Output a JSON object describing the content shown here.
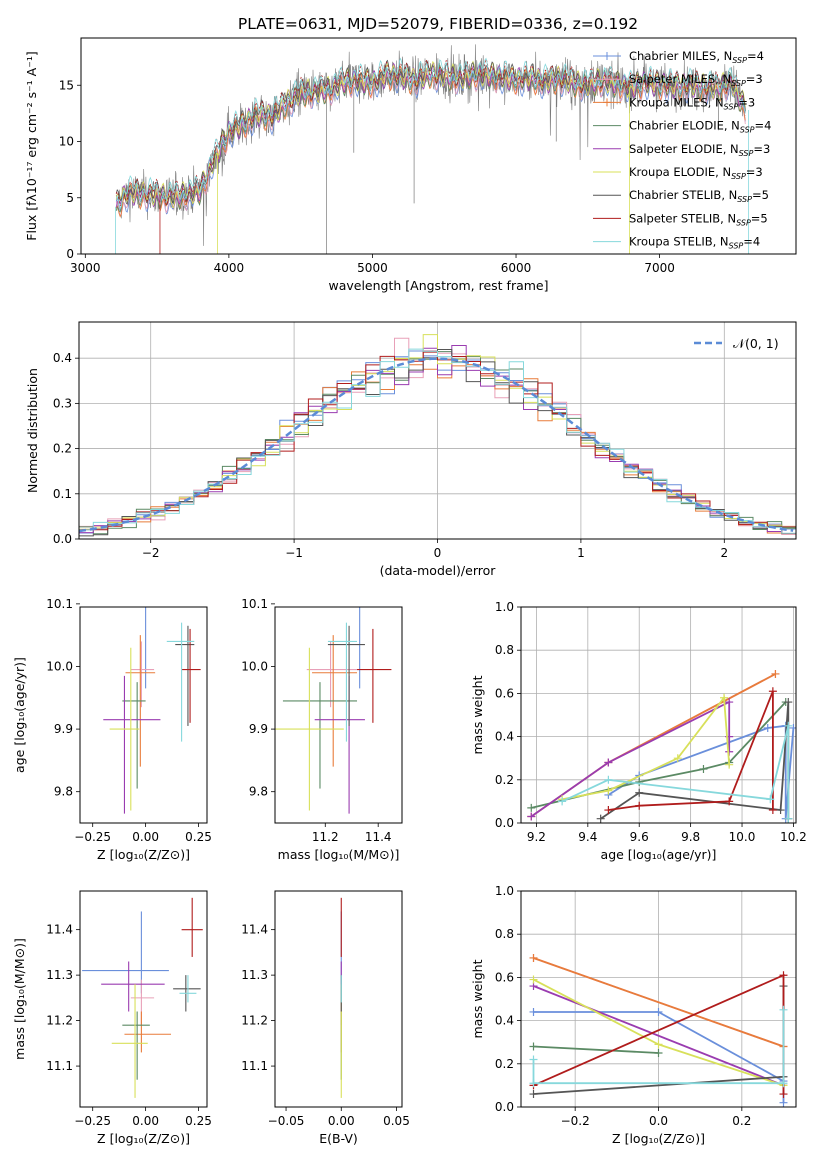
{
  "page_title": "PLATE=0631, MJD=52079, FIBERID=0336, z=0.192",
  "colors": [
    "#6a8fdb",
    "#e8a0b8",
    "#e87c3a",
    "#5b8a64",
    "#9a3cb0",
    "#d8e05a",
    "#555555",
    "#b01c1c",
    "#86d8dc"
  ],
  "chart_data": [
    {
      "id": "spectrum",
      "type": "line",
      "xlabel": "wavelength [Angstrom, rest frame]",
      "ylabel": "Flux [fλ10⁻¹⁷ erg cm⁻² s⁻¹ A⁻¹]",
      "xlim": [
        2970,
        7950
      ],
      "ylim": [
        0,
        19.2
      ],
      "xticks": [
        3000,
        4000,
        5000,
        6000,
        7000
      ],
      "yticks": [
        0,
        5,
        10,
        15
      ],
      "grid": false,
      "legend": "top-right",
      "series_names": [
        "Chabrier MILES, N",
        "Salpeter MILES, N",
        "Kroupa MILES, N",
        "Chabrier ELODIE, N",
        "Salpeter ELODIE, N",
        "Kroupa ELODIE, N",
        "Chabrier STELIB, N",
        "Salpeter STELIB, N",
        "Kroupa STELIB, N"
      ],
      "legend_sub": "SSP",
      "legend_counts": [
        "=4",
        "=3",
        "=3",
        "=4",
        "=3",
        "=3",
        "=5",
        "=5",
        "=4"
      ],
      "continuum": [
        [
          3210,
          4.2
        ],
        [
          3300,
          5.4
        ],
        [
          3450,
          5.3
        ],
        [
          3600,
          5.0
        ],
        [
          3700,
          5.3
        ],
        [
          3800,
          5.6
        ],
        [
          3900,
          8.5
        ],
        [
          4000,
          10.8
        ],
        [
          4100,
          11.5
        ],
        [
          4200,
          12.4
        ],
        [
          4300,
          12.2
        ],
        [
          4400,
          13.4
        ],
        [
          4500,
          14.3
        ],
        [
          4600,
          14.4
        ],
        [
          4700,
          14.6
        ],
        [
          4800,
          15.3
        ],
        [
          4900,
          15.4
        ],
        [
          5000,
          15.2
        ],
        [
          5100,
          15.9
        ],
        [
          5200,
          15.8
        ],
        [
          5300,
          15.4
        ],
        [
          5400,
          16.0
        ],
        [
          5500,
          15.8
        ],
        [
          5600,
          15.6
        ],
        [
          5700,
          15.9
        ],
        [
          5800,
          15.9
        ],
        [
          5900,
          15.7
        ],
        [
          6000,
          15.5
        ],
        [
          6100,
          15.6
        ],
        [
          6200,
          15.3
        ],
        [
          6300,
          15.6
        ],
        [
          6400,
          15.2
        ],
        [
          6500,
          15.0
        ],
        [
          6600,
          15.4
        ],
        [
          6700,
          15.1
        ],
        [
          6800,
          14.8
        ],
        [
          6900,
          15.2
        ],
        [
          7000,
          15.0
        ],
        [
          7100,
          14.9
        ],
        [
          7200,
          15.0
        ],
        [
          7300,
          14.9
        ],
        [
          7400,
          14.7
        ],
        [
          7500,
          15.3
        ],
        [
          7600,
          12.8
        ]
      ]
    },
    {
      "id": "residuals",
      "type": "histogram",
      "xlabel": "(data-model)/error",
      "ylabel": "Normed distribution",
      "xlim": [
        -2.5,
        2.5
      ],
      "ylim": [
        0,
        0.48
      ],
      "xticks": [
        -2,
        -1,
        0,
        1,
        2
      ],
      "yticks": [
        0.0,
        0.1,
        0.2,
        0.3,
        0.4
      ],
      "grid": true,
      "legend": "top-right",
      "legend_label": "𝒩(0, 1)",
      "normal": {
        "mu": 0,
        "sigma": 1
      },
      "bin_width": 0.1
    },
    {
      "id": "age_vs_Z",
      "type": "errorbar",
      "xlabel": "Z [log₁₀(Z/Z⊙)]",
      "ylabel": "age  [log₁₀(age/yr)]",
      "xlim": [
        -0.31,
        0.29
      ],
      "ylim": [
        9.75,
        10.095
      ],
      "xticks": [
        -0.25,
        0.0,
        0.25
      ],
      "yticks": [
        9.8,
        9.9,
        10.0,
        10.1
      ],
      "points": [
        {
          "x": 0.0,
          "xerr": [
            0.25,
            0.1
          ],
          "y": 10.095,
          "yerr": [
            0.13,
            0.04
          ]
        },
        {
          "x": -0.02,
          "xerr": [
            0.05,
            0.06
          ],
          "y": 9.995,
          "yerr": [
            0.06,
            0.045
          ]
        },
        {
          "x": -0.025,
          "xerr": [
            0.07,
            0.07
          ],
          "y": 9.99,
          "yerr": [
            0.15,
            0.06
          ]
        },
        {
          "x": -0.04,
          "xerr": [
            0.07,
            0.04
          ],
          "y": 9.945,
          "yerr": [
            0.14,
            0.03
          ]
        },
        {
          "x": -0.1,
          "xerr": [
            0.1,
            0.17
          ],
          "y": 9.915,
          "yerr": [
            0.15,
            0.07
          ]
        },
        {
          "x": -0.07,
          "xerr": [
            0.1,
            0.04
          ],
          "y": 9.9,
          "yerr": [
            0.13,
            0.13
          ]
        },
        {
          "x": 0.2,
          "xerr": [
            0.06,
            0.03
          ],
          "y": 10.035,
          "yerr": [
            0.13,
            0.03
          ]
        },
        {
          "x": 0.21,
          "xerr": [
            0.04,
            0.05
          ],
          "y": 9.995,
          "yerr": [
            0.085,
            0.065
          ]
        },
        {
          "x": 0.17,
          "xerr": [
            0.07,
            0.06
          ],
          "y": 10.04,
          "yerr": [
            0.16,
            0.03
          ]
        }
      ]
    },
    {
      "id": "age_vs_mass",
      "type": "errorbar",
      "xlabel": "mass [log₁₀(M/M⊙)]",
      "ylabel": "",
      "xlim": [
        11.01,
        11.49
      ],
      "ylim": [
        9.75,
        10.095
      ],
      "xticks": [
        11.2,
        11.4
      ],
      "yticks": [
        9.8,
        9.9,
        10.0,
        10.1
      ],
      "points": [
        {
          "x": 11.33,
          "xerr": [
            0.13,
            0.1
          ],
          "y": 10.095,
          "yerr": [
            0.13,
            0.04
          ]
        },
        {
          "x": 11.22,
          "xerr": [
            0.09,
            0.1
          ],
          "y": 9.995,
          "yerr": [
            0.06,
            0.045
          ]
        },
        {
          "x": 11.23,
          "xerr": [
            0.08,
            0.09
          ],
          "y": 9.99,
          "yerr": [
            0.15,
            0.06
          ]
        },
        {
          "x": 11.18,
          "xerr": [
            0.14,
            0.14
          ],
          "y": 9.945,
          "yerr": [
            0.14,
            0.03
          ]
        },
        {
          "x": 11.29,
          "xerr": [
            0.13,
            0.06
          ],
          "y": 9.915,
          "yerr": [
            0.15,
            0.07
          ]
        },
        {
          "x": 11.14,
          "xerr": [
            0.13,
            0.13
          ],
          "y": 9.9,
          "yerr": [
            0.13,
            0.13
          ]
        },
        {
          "x": 11.29,
          "xerr": [
            0.08,
            0.06
          ],
          "y": 10.035,
          "yerr": [
            0.13,
            0.03
          ]
        },
        {
          "x": 11.38,
          "xerr": [
            0.06,
            0.07
          ],
          "y": 9.995,
          "yerr": [
            0.085,
            0.065
          ]
        },
        {
          "x": 11.28,
          "xerr": [
            0.07,
            0.04
          ],
          "y": 10.04,
          "yerr": [
            0.16,
            0.03
          ]
        }
      ]
    },
    {
      "id": "weight_vs_age",
      "type": "line",
      "xlabel": "age  [log₁₀(age/yr)]",
      "ylabel": "mass weight",
      "xlim": [
        9.14,
        10.21
      ],
      "ylim": [
        0,
        1
      ],
      "xticks": [
        9.2,
        9.4,
        9.6,
        9.8,
        10.0,
        10.2
      ],
      "yticks": [
        0.0,
        0.2,
        0.4,
        0.6,
        0.8,
        1.0
      ],
      "grid": true,
      "series": [
        {
          "x": [
            9.48,
            9.6,
            10.1,
            10.17,
            10.17,
            10.2
          ],
          "y": [
            0.13,
            0.22,
            0.44,
            0.45,
            0.02,
            0.44
          ]
        },
        {
          "x": [
            9.48,
            10.13
          ],
          "y": [
            0.28,
            0.69
          ]
        },
        {
          "x": [
            9.18,
            9.48,
            10.13
          ],
          "y": [
            0.03,
            0.28,
            0.69
          ]
        },
        {
          "x": [
            9.18,
            9.6,
            9.85,
            9.95,
            10.17
          ],
          "y": [
            0.07,
            0.19,
            0.25,
            0.28,
            0.56
          ]
        },
        {
          "x": [
            9.18,
            9.48,
            9.95,
            9.95,
            9.95
          ],
          "y": [
            0.03,
            0.28,
            0.56,
            0.33,
            0.4
          ]
        },
        {
          "x": [
            9.3,
            9.48,
            9.75,
            9.93,
            9.95
          ],
          "y": [
            0.11,
            0.15,
            0.3,
            0.58,
            0.27
          ]
        },
        {
          "x": [
            9.45,
            9.6,
            10.15,
            10.18,
            10.18
          ],
          "y": [
            0.02,
            0.14,
            0.06,
            0.56,
            0.02
          ]
        },
        {
          "x": [
            9.48,
            9.6,
            9.95,
            10.12,
            10.12
          ],
          "y": [
            0.06,
            0.08,
            0.1,
            0.61,
            0.06
          ]
        },
        {
          "x": [
            9.3,
            9.48,
            10.11,
            10.18,
            10.18
          ],
          "y": [
            0.1,
            0.2,
            0.11,
            0.45,
            0.02
          ]
        }
      ]
    },
    {
      "id": "mass_vs_Z",
      "type": "errorbar",
      "xlabel": "Z [log₁₀(Z/Z⊙)]",
      "ylabel": "mass [log₁₀(M/M⊙)]",
      "xlim": [
        -0.31,
        0.29
      ],
      "ylim": [
        11.01,
        11.485
      ],
      "xticks": [
        -0.25,
        0.0,
        0.25
      ],
      "yticks": [
        11.1,
        11.2,
        11.3,
        11.4
      ],
      "points": [
        {
          "x": -0.02,
          "xerr": [
            0.28,
            0.13
          ],
          "y": 11.31,
          "yerr": [
            0.05,
            0.13
          ]
        },
        {
          "x": -0.02,
          "xerr": [
            0.05,
            0.06
          ],
          "y": 11.25,
          "yerr": [
            0.06,
            0.04
          ]
        },
        {
          "x": -0.02,
          "xerr": [
            0.08,
            0.14
          ],
          "y": 11.17,
          "yerr": [
            0.04,
            0.05
          ]
        },
        {
          "x": -0.04,
          "xerr": [
            0.07,
            0.06
          ],
          "y": 11.19,
          "yerr": [
            0.12,
            0.03
          ]
        },
        {
          "x": -0.08,
          "xerr": [
            0.13,
            0.17
          ],
          "y": 11.28,
          "yerr": [
            0.06,
            0.05
          ]
        },
        {
          "x": -0.05,
          "xerr": [
            0.11,
            0.06
          ],
          "y": 11.15,
          "yerr": [
            0.12,
            0.13
          ]
        },
        {
          "x": 0.19,
          "xerr": [
            0.06,
            0.07
          ],
          "y": 11.27,
          "yerr": [
            0.05,
            0.03
          ]
        },
        {
          "x": 0.22,
          "xerr": [
            0.05,
            0.05
          ],
          "y": 11.4,
          "yerr": [
            0.06,
            0.07
          ]
        },
        {
          "x": 0.2,
          "xerr": [
            0.04,
            0.04
          ],
          "y": 11.26,
          "yerr": [
            0.02,
            0.04
          ]
        }
      ]
    },
    {
      "id": "mass_vs_ebv",
      "type": "errorbar",
      "xlabel": "E(B-V)",
      "ylabel": "",
      "xlim": [
        -0.06,
        0.055
      ],
      "ylim": [
        11.01,
        11.485
      ],
      "xticks": [
        -0.05,
        0.0,
        0.05
      ],
      "yticks": [
        11.1,
        11.2,
        11.3,
        11.4
      ],
      "points": [
        {
          "x": 0.0,
          "xerr": [
            0,
            0
          ],
          "y": 11.31,
          "yerr": [
            0.05,
            0.13
          ]
        },
        {
          "x": 0.0,
          "xerr": [
            0,
            0
          ],
          "y": 11.25,
          "yerr": [
            0.06,
            0.04
          ]
        },
        {
          "x": 0.0,
          "xerr": [
            0,
            0
          ],
          "y": 11.17,
          "yerr": [
            0.04,
            0.05
          ]
        },
        {
          "x": 0.0,
          "xerr": [
            0,
            0
          ],
          "y": 11.19,
          "yerr": [
            0.12,
            0.03
          ]
        },
        {
          "x": 0.0,
          "xerr": [
            0,
            0
          ],
          "y": 11.28,
          "yerr": [
            0.06,
            0.05
          ]
        },
        {
          "x": 0.0,
          "xerr": [
            0,
            0
          ],
          "y": 11.15,
          "yerr": [
            0.12,
            0.13
          ]
        },
        {
          "x": 0.0,
          "xerr": [
            0,
            0
          ],
          "y": 11.27,
          "yerr": [
            0.05,
            0.03
          ]
        },
        {
          "x": 0.0,
          "xerr": [
            0,
            0
          ],
          "y": 11.4,
          "yerr": [
            0.06,
            0.07
          ]
        },
        {
          "x": 0.0,
          "xerr": [
            0,
            0
          ],
          "y": 11.26,
          "yerr": [
            0.02,
            0.04
          ]
        }
      ]
    },
    {
      "id": "weight_vs_Z",
      "type": "line",
      "xlabel": "Z [log₁₀(Z/Z⊙)]",
      "ylabel": "mass weight",
      "xlim": [
        -0.33,
        0.33
      ],
      "ylim": [
        0,
        1
      ],
      "xticks": [
        -0.2,
        0.0,
        0.2
      ],
      "yticks": [
        0.0,
        0.2,
        0.4,
        0.6,
        0.8,
        1.0
      ],
      "grid": true,
      "series": [
        {
          "x": [
            -0.3,
            0.0,
            0.3,
            0.3
          ],
          "y": [
            0.44,
            0.44,
            0.12,
            0.02
          ]
        },
        {
          "x": [
            -0.3,
            0.3
          ],
          "y": [
            0.69,
            0.28
          ]
        },
        {
          "x": [
            -0.3,
            0.3
          ],
          "y": [
            0.69,
            0.28
          ]
        },
        {
          "x": [
            -0.3,
            0.0
          ],
          "y": [
            0.28,
            0.25
          ]
        },
        {
          "x": [
            -0.3,
            0.3
          ],
          "y": [
            0.56,
            0.1
          ]
        },
        {
          "x": [
            -0.3,
            0.0,
            0.3
          ],
          "y": [
            0.59,
            0.29,
            0.1
          ]
        },
        {
          "x": [
            -0.3,
            0.3,
            0.3
          ],
          "y": [
            0.06,
            0.14,
            0.56
          ]
        },
        {
          "x": [
            -0.3,
            0.3,
            0.3
          ],
          "y": [
            0.1,
            0.61,
            0.06
          ]
        },
        {
          "x": [
            -0.3,
            -0.3,
            0.3,
            0.3
          ],
          "y": [
            0.22,
            0.11,
            0.11,
            0.45
          ]
        }
      ]
    }
  ]
}
